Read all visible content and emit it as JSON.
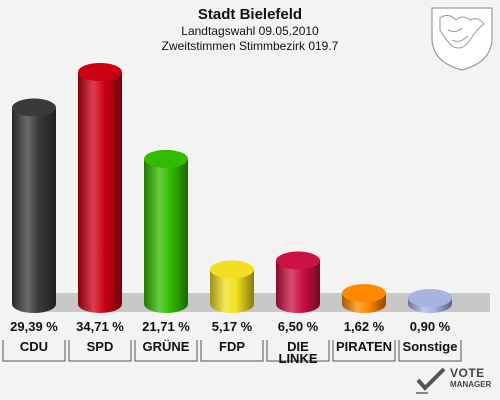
{
  "header": {
    "title": "Stadt Bielefeld",
    "subtitle1": "Landtagswahl 09.05.2010",
    "subtitle2": "Zweitstimmen Stimmbezirk 019.7"
  },
  "logo": {
    "word1": "VOTE",
    "word2": "MANAGER",
    "icon": "coat-of-arms-icon"
  },
  "chart_data": {
    "type": "bar",
    "title": "",
    "xlabel": "",
    "ylabel": "",
    "ylim": [
      0,
      40
    ],
    "grid": false,
    "categories": [
      "CDU",
      "SPD",
      "GRÜNE",
      "FDP",
      "DIE LINKE",
      "PIRATEN",
      "Sonstige"
    ],
    "values": [
      29.39,
      34.71,
      21.71,
      5.17,
      6.5,
      1.62,
      0.9
    ],
    "value_labels": [
      "29,39 %",
      "34,71 %",
      "21,71 %",
      "5,17 %",
      "6,50 %",
      "1,62 %",
      "0,90 %"
    ],
    "colors": [
      "#3a3a3a",
      "#cc0014",
      "#33bb00",
      "#f2e020",
      "#cc1144",
      "#ff8800",
      "#a8b4e0"
    ]
  }
}
